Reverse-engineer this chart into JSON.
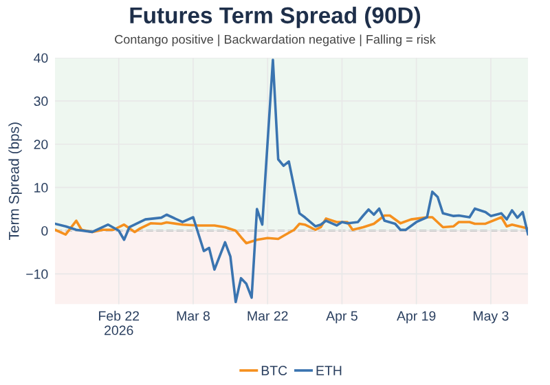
{
  "chart_data": {
    "type": "line",
    "title": "Futures Term Spread (90D)",
    "subtitle": "Contango positive | Backwardation negative | Falling = risk",
    "ylabel": "Term Spread (bps)",
    "xlim": [
      "2026-02-10",
      "2026-05-10"
    ],
    "ylim": [
      -17,
      40
    ],
    "xticks": [
      {
        "value": "2026-02-22",
        "label": "Feb 22\n2026"
      },
      {
        "value": "2026-03-08",
        "label": "Mar 8"
      },
      {
        "value": "2026-03-22",
        "label": "Mar 22"
      },
      {
        "value": "2026-04-05",
        "label": "Apr 5"
      },
      {
        "value": "2026-04-19",
        "label": "Apr 19"
      },
      {
        "value": "2026-05-03",
        "label": "May 3"
      }
    ],
    "yticks": [
      {
        "value": -10,
        "label": "−10"
      },
      0,
      10,
      20,
      30,
      40
    ],
    "grid": true,
    "legend": "bottom",
    "line_style": "solid",
    "marker": "none",
    "bands": [
      {
        "axis": "y",
        "from": 0,
        "to": 40,
        "color": "#eef7f0"
      },
      {
        "axis": "y",
        "from": -17,
        "to": 0,
        "color": "#fcf1f0"
      }
    ],
    "ref_lines": [
      {
        "axis": "y",
        "value": 0,
        "color": "#bbbbbb",
        "line_style": "dashed"
      }
    ],
    "series": [
      {
        "name": "BTC",
        "color": "#f5901e",
        "x": [
          "2026-02-10",
          "2026-02-12",
          "2026-02-14",
          "2026-02-15",
          "2026-02-17",
          "2026-02-19",
          "2026-02-21",
          "2026-02-23",
          "2026-02-25",
          "2026-02-26",
          "2026-02-28",
          "2026-03-02",
          "2026-03-03",
          "2026-03-06",
          "2026-03-09",
          "2026-03-12",
          "2026-03-14",
          "2026-03-16",
          "2026-03-17",
          "2026-03-18",
          "2026-03-20",
          "2026-03-22",
          "2026-03-24",
          "2026-03-25",
          "2026-03-27",
          "2026-03-28",
          "2026-03-29",
          "2026-03-31",
          "2026-04-01",
          "2026-04-02",
          "2026-04-04",
          "2026-04-06",
          "2026-04-07",
          "2026-04-09",
          "2026-04-11",
          "2026-04-13",
          "2026-04-14",
          "2026-04-16",
          "2026-04-18",
          "2026-04-21",
          "2026-04-22",
          "2026-04-24",
          "2026-04-26",
          "2026-04-27",
          "2026-04-29",
          "2026-04-30",
          "2026-05-02",
          "2026-05-05",
          "2026-05-06",
          "2026-05-07",
          "2026-05-10"
        ],
        "values": [
          0.2,
          -0.9,
          2.3,
          0.2,
          -0.3,
          0.2,
          0.2,
          1.4,
          -0.3,
          0.5,
          1.7,
          1.6,
          1.9,
          1.4,
          1.2,
          1.2,
          0.8,
          0,
          -1.5,
          -2.9,
          -2.1,
          -1.7,
          -1.9,
          -1.2,
          0.2,
          1.6,
          1.4,
          0.2,
          0.8,
          2.8,
          2.0,
          2.0,
          0.2,
          0.8,
          1.6,
          3.5,
          3.5,
          1.7,
          2.6,
          3.1,
          3.1,
          0.8,
          1.0,
          2.0,
          2.0,
          1.6,
          1.6,
          3.1,
          1.0,
          1.4,
          0.5
        ]
      },
      {
        "name": "ETH",
        "color": "#3a74b0",
        "x": [
          "2026-02-10",
          "2026-02-12",
          "2026-02-14",
          "2026-02-17",
          "2026-02-20",
          "2026-02-22",
          "2026-02-23",
          "2026-02-24",
          "2026-02-27",
          "2026-03-02",
          "2026-03-03",
          "2026-03-06",
          "2026-03-08",
          "2026-03-10",
          "2026-03-11",
          "2026-03-12",
          "2026-03-14",
          "2026-03-15",
          "2026-03-16",
          "2026-03-17",
          "2026-03-18",
          "2026-03-19",
          "2026-03-20",
          "2026-03-21",
          "2026-03-23",
          "2026-03-24",
          "2026-03-25",
          "2026-03-26",
          "2026-03-28",
          "2026-03-29",
          "2026-03-31",
          "2026-04-01",
          "2026-04-02",
          "2026-04-04",
          "2026-04-05",
          "2026-04-06",
          "2026-04-08",
          "2026-04-09",
          "2026-04-10",
          "2026-04-11",
          "2026-04-12",
          "2026-04-13",
          "2026-04-15",
          "2026-04-16",
          "2026-04-17",
          "2026-04-19",
          "2026-04-21",
          "2026-04-22",
          "2026-04-23",
          "2026-04-24",
          "2026-04-26",
          "2026-04-27",
          "2026-04-29",
          "2026-04-30",
          "2026-05-02",
          "2026-05-03",
          "2026-05-05",
          "2026-05-06",
          "2026-05-07",
          "2026-05-08",
          "2026-05-09",
          "2026-05-10"
        ],
        "values": [
          1.6,
          1.0,
          0.2,
          -0.3,
          1.4,
          0,
          -2.1,
          0.8,
          2.6,
          3.0,
          3.7,
          2.0,
          3.1,
          -4.7,
          -4.0,
          -9,
          -2.7,
          -6,
          -16.5,
          -11,
          -12.3,
          -15.5,
          5,
          1.4,
          39.5,
          16.5,
          15,
          16,
          4,
          3.1,
          1.0,
          1.4,
          2.3,
          1.2,
          2.0,
          1.7,
          2.0,
          3.5,
          4.9,
          3.7,
          5.1,
          2.3,
          1.6,
          0.2,
          0.2,
          2.0,
          3.1,
          9,
          7.8,
          4.0,
          3.4,
          3.5,
          3.1,
          5.1,
          4.3,
          3.4,
          4.0,
          2.6,
          4.7,
          3.0,
          4.3,
          -0.8
        ]
      }
    ]
  }
}
